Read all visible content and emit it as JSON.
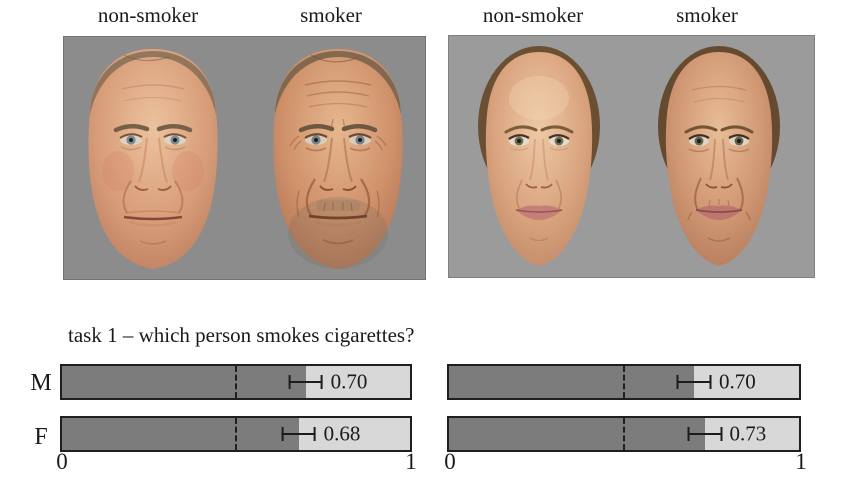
{
  "figure": {
    "panel_labels": {
      "male": {
        "left": "non-smoker",
        "right": "smoker"
      },
      "female": {
        "left": "non-smoker",
        "right": "smoker"
      }
    },
    "task_title": "task 1 – which person smokes cigarettes?"
  },
  "chart_data": {
    "type": "bar",
    "orientation": "horizontal",
    "title": "task 1 – which person smokes cigarettes?",
    "xlim": [
      0,
      1
    ],
    "x_ticks": [
      "0",
      "1"
    ],
    "reference_line_x": 0.5,
    "bar_style": {
      "filled_color": "#7c7c7c",
      "remainder_color": "#d8d8d8",
      "border_color": "#1f1f1f",
      "panel_background_male": "#8c8c8c",
      "panel_background_female": "#9b9b9b"
    },
    "panels": [
      {
        "name": "male-faces",
        "rows": [
          {
            "label": "M",
            "value": 0.7,
            "value_label": "0.70",
            "error": 0.05
          },
          {
            "label": "F",
            "value": 0.68,
            "value_label": "0.68",
            "error": 0.05
          }
        ]
      },
      {
        "name": "female-faces",
        "rows": [
          {
            "label": "",
            "value": 0.7,
            "value_label": "0.70",
            "error": 0.05
          },
          {
            "label": "",
            "value": 0.73,
            "value_label": "0.73",
            "error": 0.05
          }
        ]
      }
    ]
  }
}
